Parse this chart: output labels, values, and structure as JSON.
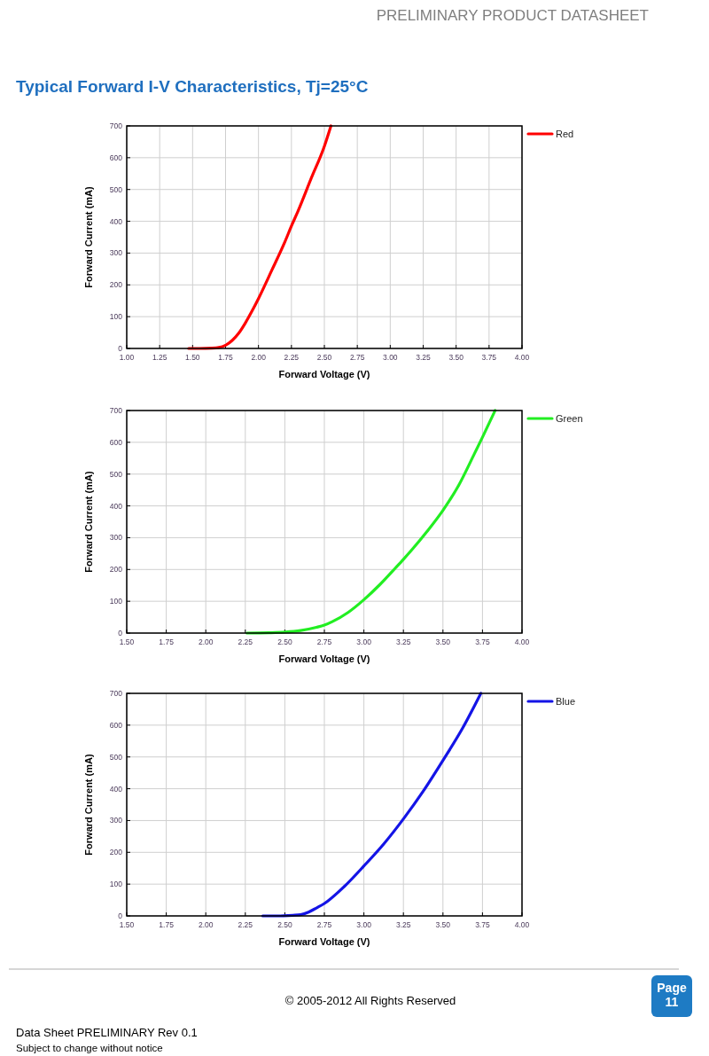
{
  "chart_data": [
    {
      "type": "line",
      "title": "Typical Forward I-V Characteristics, Tj=25°C",
      "annotations": [
        "PRELIMINARY PRODUCT DATASHEET"
      ],
      "xlabel": "Forward Voltage (V)",
      "ylabel": "Forward Current (mA)",
      "x": [
        1.47,
        1.55,
        1.65,
        1.7,
        1.75,
        1.8,
        1.85,
        1.9,
        1.95,
        2.0,
        2.1,
        2.2,
        2.25,
        2.3,
        2.4,
        2.5,
        2.55
      ],
      "series": [
        {
          "name": "Red",
          "color": "#ff0000",
          "values": [
            0,
            0,
            1,
            3,
            10,
            25,
            48,
            80,
            117,
            157,
            245,
            335,
            385,
            432,
            535,
            636,
            700
          ]
        }
      ],
      "xlim": [
        1,
        4
      ],
      "xticks": [
        {
          "value": 1,
          "label": "1.00"
        },
        {
          "value": 1.25,
          "label": "1.25"
        },
        {
          "value": 1.5,
          "label": "1.50"
        },
        {
          "value": 1.75,
          "label": "1.75"
        },
        {
          "value": 2,
          "label": "2.00"
        },
        {
          "value": 2.25,
          "label": "2.25"
        },
        {
          "value": 2.5,
          "label": "2.50"
        },
        {
          "value": 2.75,
          "label": "2.75"
        },
        {
          "value": 3,
          "label": "3.00"
        },
        {
          "value": 3.25,
          "label": "3.25"
        },
        {
          "value": 3.5,
          "label": "3.50"
        },
        {
          "value": 3.75,
          "label": "3.75"
        },
        {
          "value": 4,
          "label": "4.00"
        }
      ],
      "ylim": [
        0,
        700
      ],
      "yticks": [
        0,
        100,
        200,
        300,
        400,
        500,
        600,
        700
      ],
      "grid": true,
      "legend": "top right"
    },
    {
      "type": "line",
      "xlabel": "Forward Voltage (V)",
      "ylabel": "Forward Current (mA)",
      "x": [
        2.26,
        2.4,
        2.5,
        2.6,
        2.7,
        2.75,
        2.8,
        2.9,
        3.0,
        3.1,
        3.2,
        3.25,
        3.3,
        3.4,
        3.5,
        3.6,
        3.7,
        3.75,
        3.83
      ],
      "series": [
        {
          "name": "Green",
          "color": "#22ee22",
          "values": [
            0,
            1,
            3,
            8,
            18,
            25,
            36,
            65,
            105,
            152,
            205,
            232,
            260,
            320,
            386,
            465,
            565,
            616,
            700
          ]
        }
      ],
      "xlim": [
        1.5,
        4
      ],
      "xticks": [
        {
          "value": 1.5,
          "label": "1.50"
        },
        {
          "value": 1.75,
          "label": "1.75"
        },
        {
          "value": 2,
          "label": "2.00"
        },
        {
          "value": 2.25,
          "label": "2.25"
        },
        {
          "value": 2.5,
          "label": "2.50"
        },
        {
          "value": 2.75,
          "label": "2.75"
        },
        {
          "value": 3,
          "label": "3.00"
        },
        {
          "value": 3.25,
          "label": "3.25"
        },
        {
          "value": 3.5,
          "label": "3.50"
        },
        {
          "value": 3.75,
          "label": "3.75"
        },
        {
          "value": 4,
          "label": "4.00"
        }
      ],
      "ylim": [
        0,
        700
      ],
      "yticks": [
        0,
        100,
        200,
        300,
        400,
        500,
        600,
        700
      ],
      "grid": true,
      "legend": "top right"
    },
    {
      "type": "line",
      "annotations": [
        "© 2005-2012 All Rights Reserved",
        "Page 11",
        "Data Sheet PRELIMINARY Rev 0.1",
        "Subject to change without notice"
      ],
      "xlabel": "Forward Voltage (V)",
      "ylabel": "Forward Current (mA)",
      "x": [
        2.36,
        2.45,
        2.55,
        2.6,
        2.65,
        2.7,
        2.75,
        2.875,
        3.0,
        3.125,
        3.25,
        3.375,
        3.5,
        3.625,
        3.74
      ],
      "series": [
        {
          "name": "Blue",
          "color": "#1414e6",
          "values": [
            0,
            0,
            2,
            4,
            12,
            25,
            39,
            92,
            157,
            226,
            305,
            392,
            489,
            591,
            700
          ]
        }
      ],
      "xlim": [
        1.5,
        4
      ],
      "xticks": [
        {
          "value": 1.5,
          "label": "1.50"
        },
        {
          "value": 1.75,
          "label": "1.75"
        },
        {
          "value": 2,
          "label": "2.00"
        },
        {
          "value": 2.25,
          "label": "2.25"
        },
        {
          "value": 2.5,
          "label": "2.50"
        },
        {
          "value": 2.75,
          "label": "2.75"
        },
        {
          "value": 3,
          "label": "3.00"
        },
        {
          "value": 3.25,
          "label": "3.25"
        },
        {
          "value": 3.5,
          "label": "3.50"
        },
        {
          "value": 3.75,
          "label": "3.75"
        },
        {
          "value": 4,
          "label": "4.00"
        }
      ],
      "ylim": [
        0,
        700
      ],
      "yticks": [
        0,
        100,
        200,
        300,
        400,
        500,
        600,
        700
      ],
      "grid": true,
      "legend": "top right"
    }
  ]
}
